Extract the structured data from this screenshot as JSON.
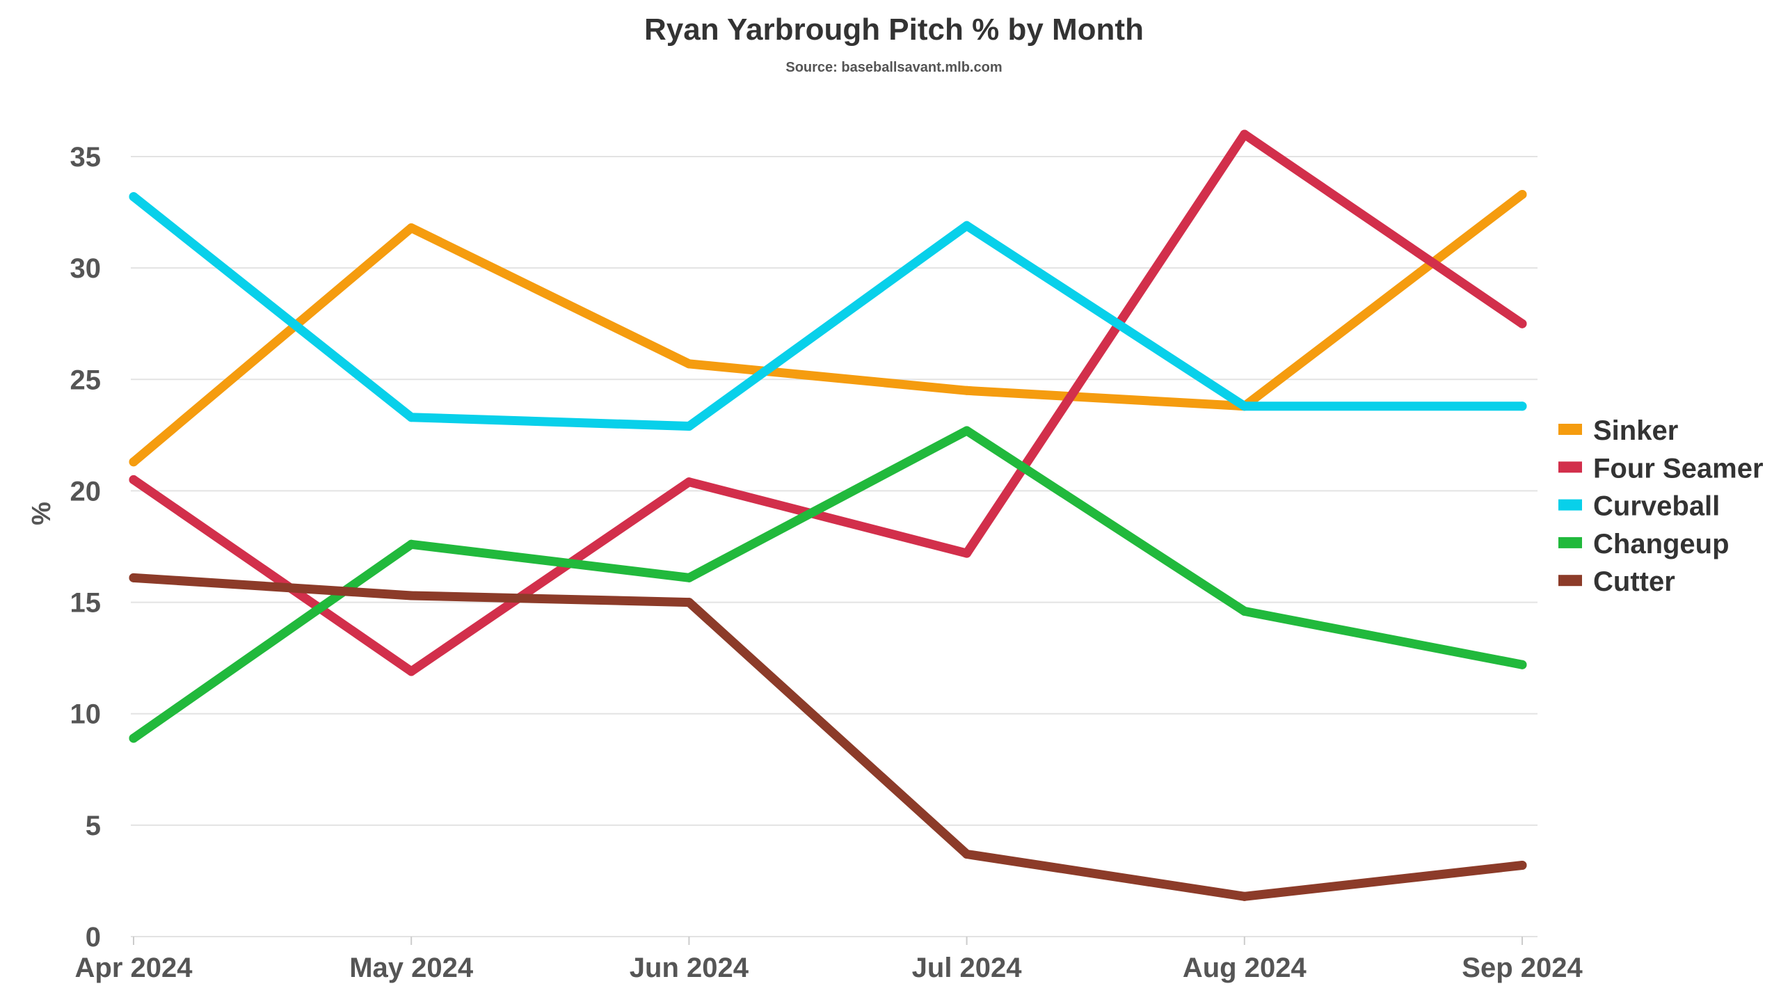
{
  "chart_data": {
    "type": "line",
    "title": "Ryan Yarbrough Pitch % by Month",
    "subtitle": "Source: baseballsavant.mlb.com",
    "xlabel": "",
    "ylabel": "%",
    "ylim": [
      0,
      35
    ],
    "yticks": [
      "0",
      "5",
      "10",
      "15",
      "20",
      "25",
      "30",
      "35"
    ],
    "grid": true,
    "legend_position": "right",
    "categories": [
      "Apr 2024",
      "May 2024",
      "Jun 2024",
      "Jul 2024",
      "Aug 2024",
      "Sep 2024"
    ],
    "series": [
      {
        "name": "Sinker",
        "color": "#f59c0f",
        "values": [
          21.3,
          31.8,
          25.7,
          24.5,
          23.8,
          33.3
        ]
      },
      {
        "name": "Four Seamer",
        "color": "#d22f4b",
        "values": [
          20.5,
          11.9,
          20.4,
          17.2,
          36.0,
          27.5
        ]
      },
      {
        "name": "Curveball",
        "color": "#08d0ea",
        "values": [
          33.2,
          23.3,
          22.9,
          31.9,
          23.8,
          23.8
        ]
      },
      {
        "name": "Changeup",
        "color": "#21b93c",
        "values": [
          8.9,
          17.6,
          16.1,
          22.7,
          14.6,
          12.2
        ]
      },
      {
        "name": "Cutter",
        "color": "#8c3b29",
        "values": [
          16.1,
          15.3,
          15.0,
          3.7,
          1.8,
          3.2
        ]
      }
    ]
  }
}
